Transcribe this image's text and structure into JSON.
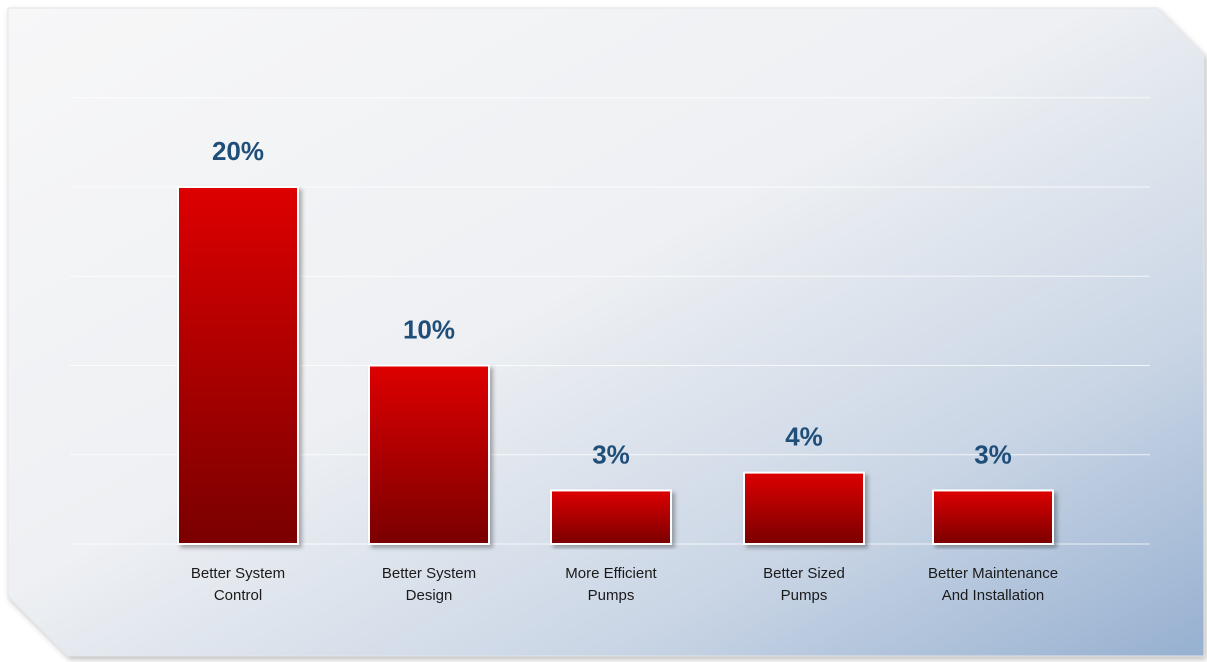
{
  "chart_data": {
    "type": "bar",
    "categories": [
      [
        "Better System",
        "Control"
      ],
      [
        "Better System",
        "Design"
      ],
      [
        "More Efficient",
        "Pumps"
      ],
      [
        "Better Sized",
        "Pumps"
      ],
      [
        "Better Maintenance",
        "And Installation"
      ]
    ],
    "values": [
      20,
      10,
      3,
      4,
      3
    ],
    "value_labels": [
      "20%",
      "10%",
      "3%",
      "4%",
      "3%"
    ],
    "ylim": [
      0,
      25
    ],
    "grid": true,
    "legend": "none"
  },
  "colors": {
    "bar_top": "#dd0000",
    "bar_bottom": "#7a0000",
    "value_label": "#1f4e79",
    "background_light": "#f6f6f7",
    "background_dark": "#98b2d2"
  }
}
